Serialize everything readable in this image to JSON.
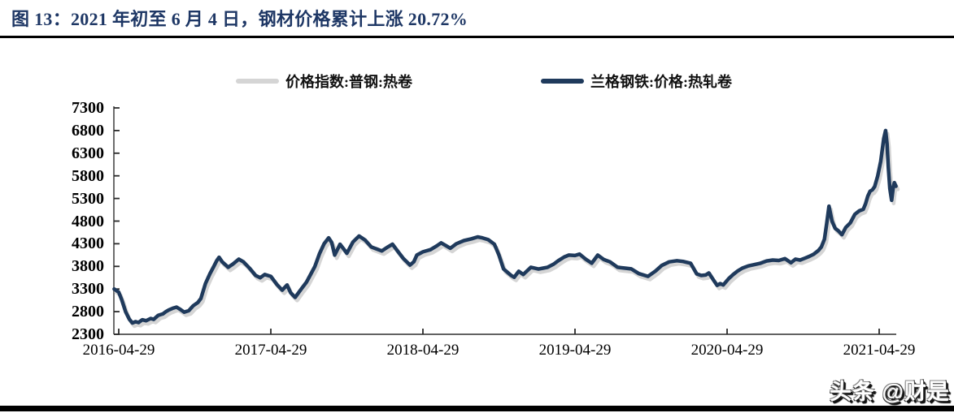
{
  "page": {
    "title": "图 13：2021 年初至 6 月 4 日，钢材价格累计上涨 20.72%",
    "watermark": "头条 @财是"
  },
  "colors": {
    "title_navy": "#1e3765",
    "series_navy": "#1f3a5c",
    "series_gray": "#d5d5d5",
    "axis_line": "#6e6e6e",
    "tick_mark": "#2a2a2a",
    "rule_black": "#000000"
  },
  "chart_data": {
    "type": "line",
    "title": "2021年初至6月4日，钢材价格累计上涨20.72%",
    "grid": false,
    "legend_position": "top-center",
    "legend": [
      {
        "label": "价格指数:普钢:热卷",
        "color": "#d5d5d5"
      },
      {
        "label": "兰格钢铁:价格:热轧卷",
        "color": "#1f3a5c"
      }
    ],
    "x_axis": {
      "tick_labels": [
        "2016-04-29",
        "2017-04-29",
        "2018-04-29",
        "2019-04-29",
        "2020-04-29",
        "2021-04-29"
      ],
      "t_note": "t in series points = years since 2016-04-29",
      "t_range": [
        -0.03,
        5.11
      ]
    },
    "y_axis": {
      "min": 2300,
      "max": 7300,
      "tick_step": 500,
      "tick_labels": [
        "7300",
        "6800",
        "6300",
        "5800",
        "5300",
        "4800",
        "4300",
        "3800",
        "3300",
        "2800",
        "2300"
      ]
    },
    "series": [
      {
        "name": "价格指数:普钢:热卷",
        "color": "#d5d5d5",
        "derived": {
          "from": "兰格钢铁:价格:热轧卷",
          "dt": 0.013,
          "dv": -70,
          "note": "gray index line tracks the navy line as a tight lower shadow"
        }
      },
      {
        "name": "兰格钢铁:价格:热轧卷",
        "color": "#1f3a5c",
        "points": [
          [
            -0.03,
            3300
          ],
          [
            0,
            3230
          ],
          [
            0.02,
            3060
          ],
          [
            0.045,
            2800
          ],
          [
            0.07,
            2630
          ],
          [
            0.09,
            2550
          ],
          [
            0.11,
            2580
          ],
          [
            0.13,
            2560
          ],
          [
            0.155,
            2620
          ],
          [
            0.18,
            2600
          ],
          [
            0.21,
            2650
          ],
          [
            0.23,
            2630
          ],
          [
            0.26,
            2720
          ],
          [
            0.29,
            2750
          ],
          [
            0.31,
            2800
          ],
          [
            0.33,
            2840
          ],
          [
            0.36,
            2880
          ],
          [
            0.38,
            2900
          ],
          [
            0.405,
            2850
          ],
          [
            0.43,
            2790
          ],
          [
            0.46,
            2820
          ],
          [
            0.49,
            2930
          ],
          [
            0.52,
            3000
          ],
          [
            0.54,
            3090
          ],
          [
            0.57,
            3420
          ],
          [
            0.6,
            3640
          ],
          [
            0.625,
            3800
          ],
          [
            0.645,
            3930
          ],
          [
            0.66,
            4000
          ],
          [
            0.68,
            3900
          ],
          [
            0.72,
            3780
          ],
          [
            0.75,
            3850
          ],
          [
            0.79,
            3960
          ],
          [
            0.82,
            3900
          ],
          [
            0.86,
            3760
          ],
          [
            0.9,
            3600
          ],
          [
            0.93,
            3550
          ],
          [
            0.96,
            3620
          ],
          [
            1,
            3580
          ],
          [
            1.04,
            3400
          ],
          [
            1.075,
            3275
          ],
          [
            1.107,
            3390
          ],
          [
            1.13,
            3220
          ],
          [
            1.16,
            3115
          ],
          [
            1.2,
            3300
          ],
          [
            1.235,
            3455
          ],
          [
            1.29,
            3800
          ],
          [
            1.32,
            4080
          ],
          [
            1.35,
            4300
          ],
          [
            1.38,
            4430
          ],
          [
            1.4,
            4330
          ],
          [
            1.42,
            4050
          ],
          [
            1.455,
            4290
          ],
          [
            1.48,
            4180
          ],
          [
            1.5,
            4090
          ],
          [
            1.54,
            4340
          ],
          [
            1.58,
            4470
          ],
          [
            1.62,
            4380
          ],
          [
            1.66,
            4230
          ],
          [
            1.7,
            4180
          ],
          [
            1.73,
            4140
          ],
          [
            1.77,
            4230
          ],
          [
            1.8,
            4290
          ],
          [
            1.84,
            4110
          ],
          [
            1.87,
            3980
          ],
          [
            1.915,
            3830
          ],
          [
            1.94,
            3900
          ],
          [
            1.96,
            4050
          ],
          [
            2,
            4120
          ],
          [
            2.05,
            4170
          ],
          [
            2.09,
            4250
          ],
          [
            2.12,
            4320
          ],
          [
            2.15,
            4260
          ],
          [
            2.18,
            4200
          ],
          [
            2.22,
            4300
          ],
          [
            2.27,
            4370
          ],
          [
            2.32,
            4410
          ],
          [
            2.36,
            4450
          ],
          [
            2.39,
            4430
          ],
          [
            2.43,
            4390
          ],
          [
            2.47,
            4290
          ],
          [
            2.5,
            4050
          ],
          [
            2.53,
            3745
          ],
          [
            2.58,
            3600
          ],
          [
            2.6,
            3560
          ],
          [
            2.63,
            3690
          ],
          [
            2.66,
            3620
          ],
          [
            2.71,
            3780
          ],
          [
            2.76,
            3740
          ],
          [
            2.79,
            3760
          ],
          [
            2.82,
            3780
          ],
          [
            2.86,
            3850
          ],
          [
            2.89,
            3925
          ],
          [
            2.93,
            4010
          ],
          [
            2.96,
            4050
          ],
          [
            3,
            4040
          ],
          [
            3.03,
            4070
          ],
          [
            3.07,
            3960
          ],
          [
            3.11,
            3870
          ],
          [
            3.15,
            4050
          ],
          [
            3.19,
            3950
          ],
          [
            3.23,
            3900
          ],
          [
            3.28,
            3780
          ],
          [
            3.33,
            3760
          ],
          [
            3.37,
            3745
          ],
          [
            3.42,
            3640
          ],
          [
            3.48,
            3580
          ],
          [
            3.53,
            3700
          ],
          [
            3.57,
            3820
          ],
          [
            3.62,
            3900
          ],
          [
            3.67,
            3925
          ],
          [
            3.71,
            3910
          ],
          [
            3.76,
            3870
          ],
          [
            3.8,
            3635
          ],
          [
            3.83,
            3600
          ],
          [
            3.86,
            3610
          ],
          [
            3.88,
            3655
          ],
          [
            3.91,
            3500
          ],
          [
            3.935,
            3380
          ],
          [
            3.955,
            3420
          ],
          [
            3.975,
            3390
          ],
          [
            4.01,
            3530
          ],
          [
            4.04,
            3620
          ],
          [
            4.07,
            3700
          ],
          [
            4.1,
            3760
          ],
          [
            4.14,
            3810
          ],
          [
            4.18,
            3840
          ],
          [
            4.22,
            3870
          ],
          [
            4.26,
            3920
          ],
          [
            4.3,
            3940
          ],
          [
            4.34,
            3930
          ],
          [
            4.38,
            3970
          ],
          [
            4.42,
            3880
          ],
          [
            4.45,
            3960
          ],
          [
            4.48,
            3940
          ],
          [
            4.51,
            3980
          ],
          [
            4.54,
            4020
          ],
          [
            4.57,
            4070
          ],
          [
            4.6,
            4150
          ],
          [
            4.62,
            4230
          ],
          [
            4.64,
            4400
          ],
          [
            4.655,
            4750
          ],
          [
            4.67,
            5130
          ],
          [
            4.69,
            4800
          ],
          [
            4.71,
            4640
          ],
          [
            4.73,
            4590
          ],
          [
            4.755,
            4500
          ],
          [
            4.78,
            4660
          ],
          [
            4.81,
            4760
          ],
          [
            4.84,
            4950
          ],
          [
            4.87,
            5030
          ],
          [
            4.895,
            5060
          ],
          [
            4.91,
            5180
          ],
          [
            4.925,
            5350
          ],
          [
            4.94,
            5460
          ],
          [
            4.955,
            5490
          ],
          [
            4.97,
            5560
          ],
          [
            4.99,
            5790
          ],
          [
            5.01,
            6120
          ],
          [
            5.03,
            6620
          ],
          [
            5.042,
            6800
          ],
          [
            5.052,
            6500
          ],
          [
            5.06,
            6000
          ],
          [
            5.07,
            5520
          ],
          [
            5.082,
            5260
          ],
          [
            5.093,
            5560
          ],
          [
            5.1,
            5650
          ],
          [
            5.11,
            5570
          ]
        ]
      }
    ]
  }
}
